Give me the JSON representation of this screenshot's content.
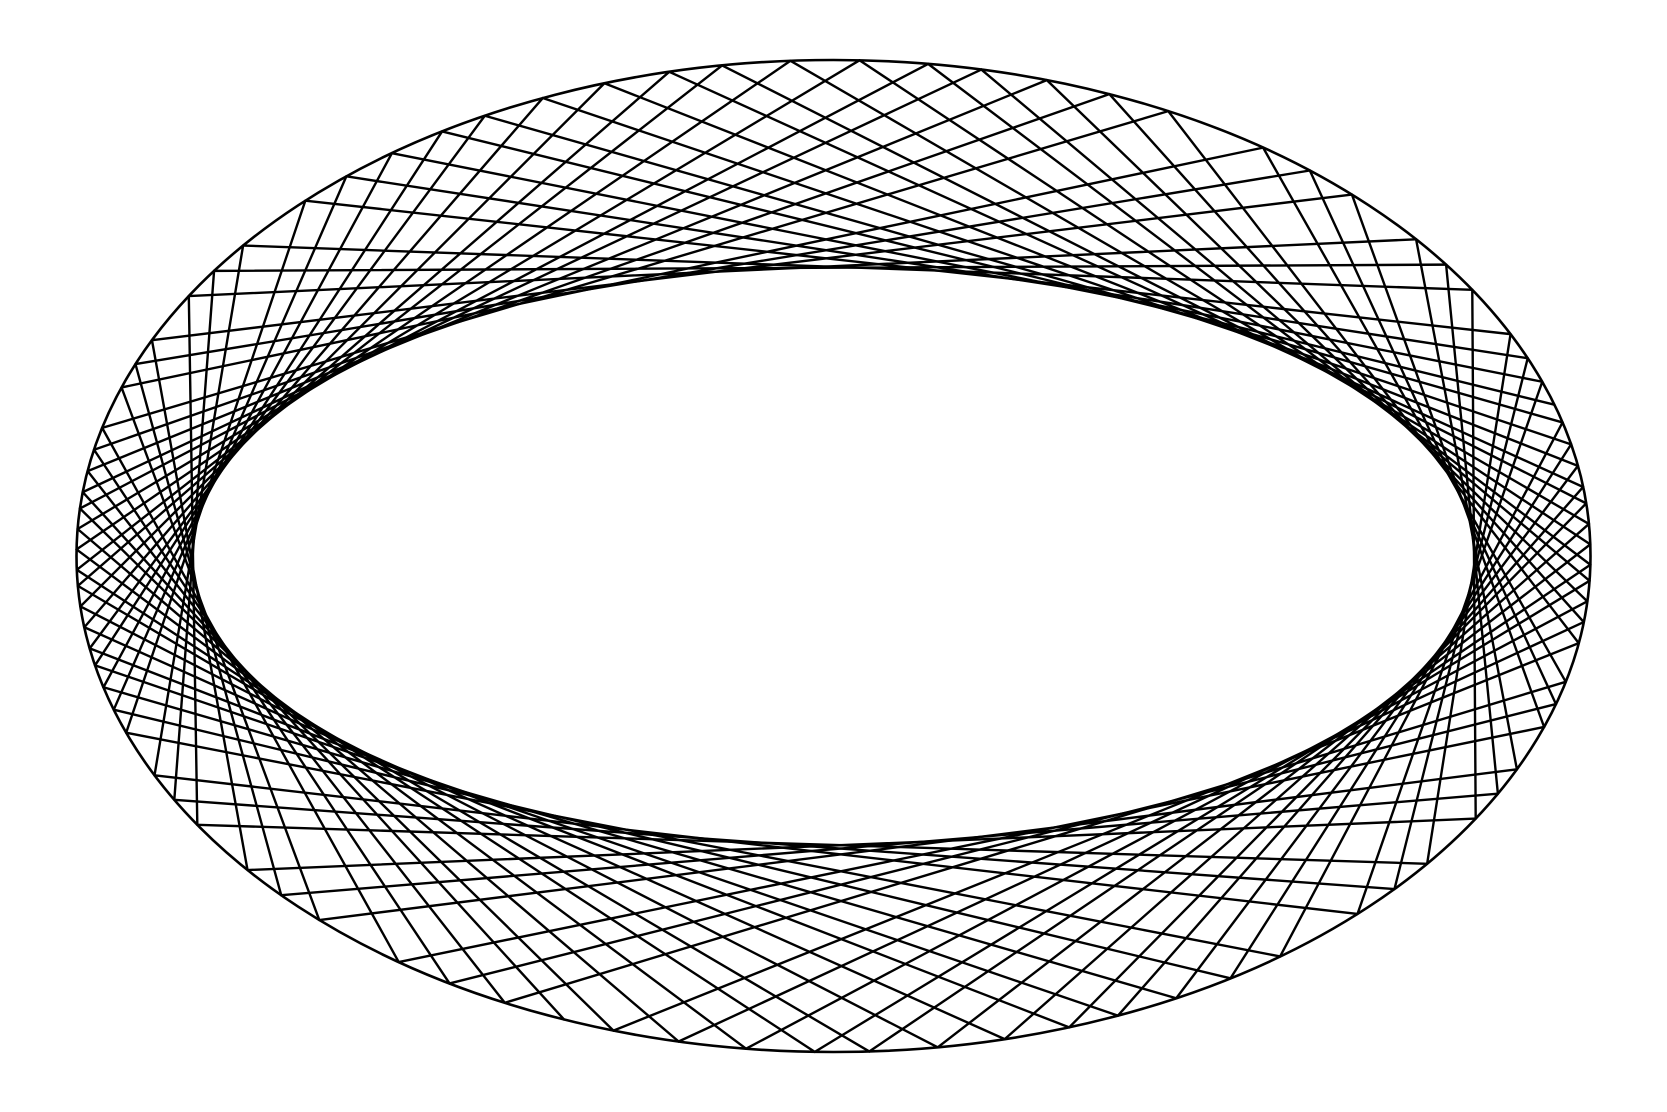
{
  "diagram": {
    "kind": "elliptical billiard trajectory",
    "boundary_shape": "ellipse",
    "caustic_shape": "hyperbola",
    "semi_major_axis": 1.0,
    "semi_minor_axis": 0.655,
    "caustic_parameter": 0.43,
    "initial_angle_rad": 0.31,
    "bounce_count": 90,
    "line_color": "#000000",
    "background_color": "#ffffff"
  }
}
